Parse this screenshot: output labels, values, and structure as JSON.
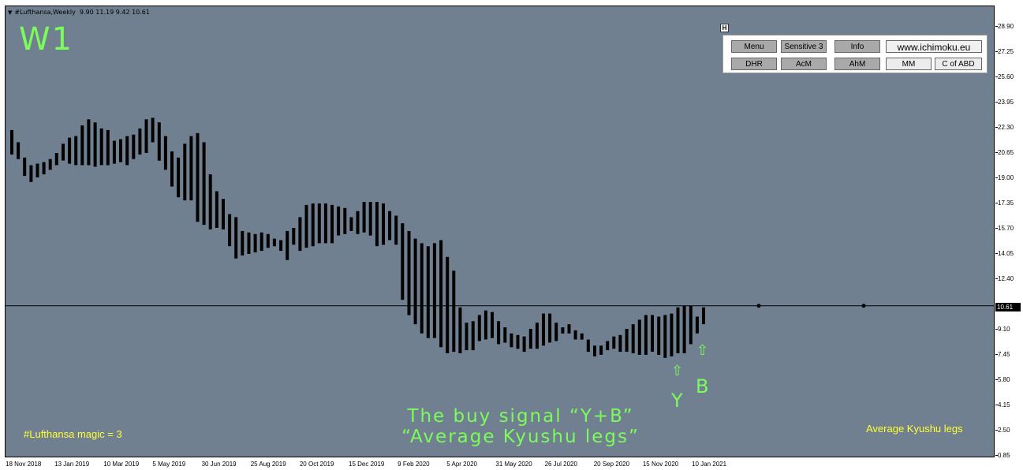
{
  "header": {
    "symbol": "#Lufthansa,Weekly",
    "ohlc": "9.90 11.19 9.42 10.61"
  },
  "timeframe": "W1",
  "magic_label": "#Lufthansa  magic = 3",
  "signal_title_line1": "The buy signal “Y+B”",
  "signal_title_line2": "“Average Kyushu legs”",
  "legs_label": "Average Kyushu legs",
  "signal_y": "Y",
  "signal_b": "B",
  "arrow_glyph": "⇧",
  "panel": {
    "toggle": "H",
    "row1": [
      "Menu",
      "Sensitive 3",
      "Info",
      "www.ichimoku.eu"
    ],
    "row2": [
      "DHR",
      "AcM",
      "AhM",
      "MM",
      "C of ABD"
    ]
  },
  "current_price": "10.61",
  "colors": {
    "background": "#708090",
    "bars": "#000000",
    "signal": "#7cfc5a",
    "labels": "#ffff33"
  },
  "chart_data": {
    "type": "bar",
    "subtype": "high-low range bars (Kyushu legs)",
    "y_axis_ticks": [
      "28.90",
      "27.25",
      "25.60",
      "23.95",
      "22.30",
      "20.65",
      "19.00",
      "17.35",
      "15.70",
      "14.05",
      "12.40",
      "10.61",
      "9.10",
      "7.45",
      "5.80",
      "4.15",
      "2.50",
      "0.85"
    ],
    "ylim": [
      0.85,
      28.9
    ],
    "x_axis_ticks": [
      "18 Nov 2018",
      "13 Jan 2019",
      "10 Mar 2019",
      "5 May 2019",
      "30 Jun 2019",
      "25 Aug 2019",
      "20 Oct 2019",
      "15 Dec 2019",
      "9 Feb 2020",
      "5 Apr 2020",
      "31 May 2020",
      "26 Jul 2020",
      "20 Sep 2020",
      "15 Nov 2020",
      "10 Jan 2021"
    ],
    "horizontal_line": 10.61,
    "bars": [
      [
        22.1,
        20.5
      ],
      [
        21.3,
        20.2
      ],
      [
        20.3,
        19.1
      ],
      [
        19.8,
        18.7
      ],
      [
        19.9,
        19.0
      ],
      [
        20.0,
        19.2
      ],
      [
        20.2,
        19.5
      ],
      [
        20.6,
        19.8
      ],
      [
        21.2,
        20.1
      ],
      [
        21.6,
        19.9
      ],
      [
        21.7,
        19.8
      ],
      [
        22.4,
        19.8
      ],
      [
        22.8,
        19.8
      ],
      [
        22.6,
        19.7
      ],
      [
        22.2,
        19.8
      ],
      [
        22.1,
        19.8
      ],
      [
        21.4,
        19.9
      ],
      [
        21.5,
        20.0
      ],
      [
        21.7,
        19.8
      ],
      [
        21.8,
        20.2
      ],
      [
        22.2,
        20.5
      ],
      [
        22.8,
        20.6
      ],
      [
        22.9,
        21.3
      ],
      [
        22.6,
        20.1
      ],
      [
        21.7,
        19.5
      ],
      [
        20.7,
        18.4
      ],
      [
        20.3,
        17.7
      ],
      [
        21.2,
        17.5
      ],
      [
        21.7,
        17.5
      ],
      [
        21.9,
        16.1
      ],
      [
        21.3,
        15.9
      ],
      [
        19.2,
        15.6
      ],
      [
        18.1,
        15.7
      ],
      [
        17.6,
        15.6
      ],
      [
        16.6,
        14.5
      ],
      [
        16.4,
        13.7
      ],
      [
        15.5,
        13.9
      ],
      [
        15.4,
        14.0
      ],
      [
        15.3,
        14.1
      ],
      [
        15.4,
        14.2
      ],
      [
        15.3,
        14.4
      ],
      [
        15.0,
        14.5
      ],
      [
        14.9,
        14.2
      ],
      [
        15.5,
        13.6
      ],
      [
        15.7,
        14.6
      ],
      [
        16.4,
        14.2
      ],
      [
        17.2,
        14.4
      ],
      [
        17.3,
        14.5
      ],
      [
        17.3,
        14.7
      ],
      [
        17.3,
        14.7
      ],
      [
        17.2,
        14.7
      ],
      [
        17.1,
        15.2
      ],
      [
        17.0,
        15.3
      ],
      [
        16.4,
        15.5
      ],
      [
        16.8,
        15.3
      ],
      [
        17.4,
        15.4
      ],
      [
        17.4,
        15.2
      ],
      [
        17.4,
        14.5
      ],
      [
        17.3,
        14.6
      ],
      [
        16.8,
        14.9
      ],
      [
        16.5,
        14.6
      ],
      [
        16.0,
        11.0
      ],
      [
        15.5,
        10.0
      ],
      [
        15.0,
        9.4
      ],
      [
        14.7,
        8.8
      ],
      [
        14.5,
        8.5
      ],
      [
        14.7,
        8.5
      ],
      [
        14.9,
        7.9
      ],
      [
        13.8,
        7.5
      ],
      [
        12.9,
        7.6
      ],
      [
        10.5,
        7.5
      ],
      [
        9.5,
        7.7
      ],
      [
        9.6,
        7.7
      ],
      [
        10.0,
        8.3
      ],
      [
        10.3,
        8.4
      ],
      [
        10.2,
        8.5
      ],
      [
        9.6,
        8.1
      ],
      [
        9.2,
        8.2
      ],
      [
        8.8,
        7.9
      ],
      [
        8.7,
        7.8
      ],
      [
        8.6,
        7.6
      ],
      [
        9.1,
        7.8
      ],
      [
        9.5,
        7.8
      ],
      [
        10.1,
        8.0
      ],
      [
        10.1,
        8.2
      ],
      [
        9.5,
        8.3
      ],
      [
        9.2,
        8.8
      ],
      [
        9.4,
        8.8
      ],
      [
        9.0,
        8.4
      ],
      [
        8.8,
        8.4
      ],
      [
        8.4,
        7.6
      ],
      [
        8.0,
        7.3
      ],
      [
        8.0,
        7.4
      ],
      [
        8.3,
        7.7
      ],
      [
        8.6,
        7.8
      ],
      [
        8.7,
        7.6
      ],
      [
        9.1,
        7.6
      ],
      [
        9.4,
        7.5
      ],
      [
        9.7,
        7.4
      ],
      [
        10.0,
        7.4
      ],
      [
        10.0,
        7.6
      ],
      [
        9.9,
        7.4
      ],
      [
        10.0,
        7.2
      ],
      [
        10.1,
        7.3
      ],
      [
        10.5,
        7.5
      ],
      [
        10.6,
        7.5
      ],
      [
        10.6,
        8.1
      ],
      [
        9.9,
        8.8
      ],
      [
        10.5,
        9.4
      ]
    ]
  }
}
